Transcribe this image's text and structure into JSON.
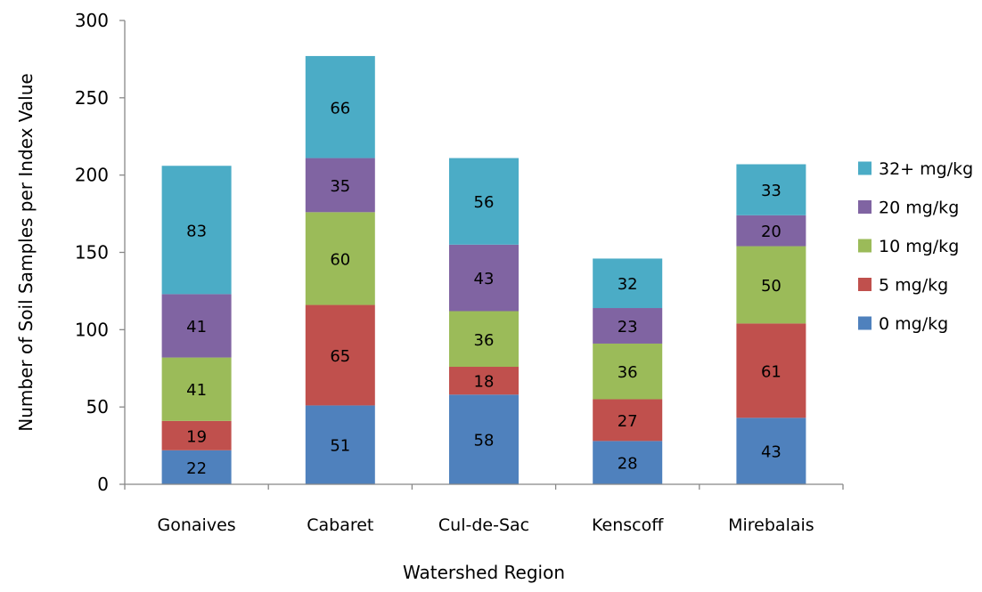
{
  "chart_data": {
    "type": "bar",
    "stacked": true,
    "title": "",
    "xlabel": "Watershed Region",
    "ylabel": "Number of Soil Samples per Index Value",
    "ylim": [
      0,
      300
    ],
    "yticks": [
      0,
      50,
      100,
      150,
      200,
      250,
      300
    ],
    "grid": false,
    "legend_position": "right",
    "categories": [
      "Gonaives",
      "Cabaret",
      "Cul-de-Sac",
      "Kenscoff",
      "Mirebalais"
    ],
    "series": [
      {
        "name": "0 mg/kg",
        "color": "#4F81BD",
        "values": [
          22,
          51,
          58,
          28,
          43
        ]
      },
      {
        "name": "5 mg/kg",
        "color": "#C0504D",
        "values": [
          19,
          65,
          18,
          27,
          61
        ]
      },
      {
        "name": "10 mg/kg",
        "color": "#9BBB59",
        "values": [
          41,
          60,
          36,
          36,
          50
        ]
      },
      {
        "name": "20 mg/kg",
        "color": "#8064A2",
        "values": [
          41,
          35,
          43,
          23,
          20
        ]
      },
      {
        "name": "32+ mg/kg",
        "color": "#4BACC6",
        "values": [
          83,
          66,
          56,
          32,
          33
        ]
      }
    ]
  }
}
